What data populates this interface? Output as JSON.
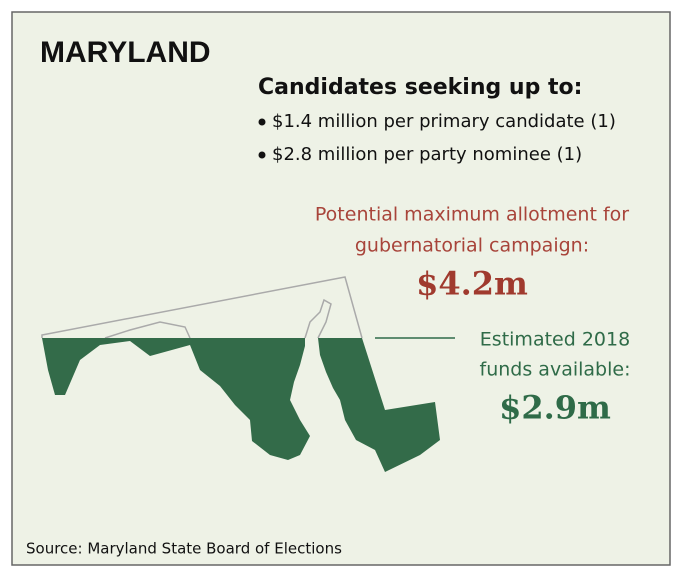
{
  "header": {
    "title": "MARYLAND"
  },
  "limits": {
    "heading": "Candidates seeking up to:",
    "bullets": [
      "$1.4 million per primary candidate (1)",
      "$2.8 million per party nominee (1)"
    ]
  },
  "potential": {
    "lines": [
      "Potential maximum allotment for",
      "gubernatorial campaign:"
    ],
    "amount": "$4.2m"
  },
  "estimated": {
    "lines": [
      "Estimated 2018",
      "funds available:"
    ],
    "amount": "$2.9m"
  },
  "source": "Source: Maryland State Board of Elections"
}
